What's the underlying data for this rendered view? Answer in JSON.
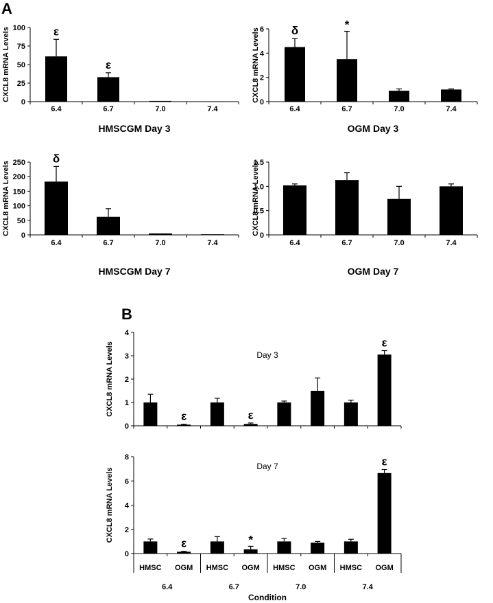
{
  "panel_labels": [
    "A",
    "B"
  ],
  "chart_data": [
    {
      "type": "bar",
      "panel": "A",
      "xlabel": "HMSCGM Day 3",
      "ylabel": "CXCL8 mRNA Levels",
      "categories": [
        "6.4",
        "6.7",
        "7.0",
        "7.4"
      ],
      "values": [
        61,
        33,
        1,
        0.5
      ],
      "errors": [
        23,
        6,
        0,
        0
      ],
      "annotations": [
        "ε",
        "ε",
        "",
        ""
      ],
      "ylim": [
        0,
        100
      ],
      "yticks": [
        "0",
        "25",
        "50",
        "75",
        "100"
      ]
    },
    {
      "type": "bar",
      "panel": "A",
      "xlabel": "OGM Day 3",
      "ylabel": "CXCL8 mRNA Levels",
      "categories": [
        "6.4",
        "6.7",
        "7.0",
        "7.4"
      ],
      "values": [
        4.5,
        3.5,
        0.9,
        1.0
      ],
      "errors": [
        0.7,
        2.3,
        0.15,
        0.05
      ],
      "annotations": [
        "δ",
        "*",
        "",
        ""
      ],
      "ylim": [
        0,
        6
      ],
      "yticks": [
        "0",
        "2",
        "4",
        "6"
      ]
    },
    {
      "type": "bar",
      "panel": "A",
      "xlabel": "HMSCGM Day 7",
      "ylabel": "CXCL8 mRNA Levels",
      "categories": [
        "6.4",
        "6.7",
        "7.0",
        "7.4"
      ],
      "values": [
        183,
        62,
        5,
        2
      ],
      "errors": [
        52,
        28,
        0,
        0
      ],
      "annotations": [
        "δ",
        "",
        "",
        ""
      ],
      "ylim": [
        0,
        250
      ],
      "yticks": [
        "0",
        "50",
        "100",
        "150",
        "200",
        "250"
      ]
    },
    {
      "type": "bar",
      "panel": "A",
      "xlabel": "OGM Day 7",
      "ylabel": "CXCL8 mRNA Levels",
      "categories": [
        "6.4",
        "6.7",
        "7.0",
        "7.4"
      ],
      "values": [
        1.02,
        1.13,
        0.74,
        1.0
      ],
      "errors": [
        0.03,
        0.15,
        0.26,
        0.05
      ],
      "annotations": [
        "",
        "",
        "",
        ""
      ],
      "ylim": [
        0,
        1.5
      ],
      "yticks": [
        "0",
        "0.5",
        "1.0",
        "1.5"
      ]
    },
    {
      "type": "bar",
      "panel": "B",
      "title": "Day 3",
      "ylabel": "CXCL8 mRNA Levels",
      "categories": [
        "HMSC",
        "OGM",
        "HMSC",
        "OGM",
        "HMSC",
        "OGM",
        "HMSC",
        "OGM"
      ],
      "values": [
        1.0,
        0.05,
        1.0,
        0.08,
        1.0,
        1.5,
        1.0,
        3.05
      ],
      "errors": [
        0.35,
        0.02,
        0.18,
        0.04,
        0.06,
        0.55,
        0.1,
        0.17
      ],
      "annotations": [
        "",
        "ε",
        "",
        "ε",
        "",
        "",
        "",
        "ε"
      ],
      "ylim": [
        0,
        4
      ],
      "yticks": [
        "0",
        "1",
        "2",
        "3",
        "4"
      ]
    },
    {
      "type": "bar",
      "panel": "B",
      "title": "Day 7",
      "ylabel": "CXCL8 mRNA Levels",
      "xlabel": "Condition",
      "categories": [
        "HMSC",
        "OGM",
        "HMSC",
        "OGM",
        "HMSC",
        "OGM",
        "HMSC",
        "OGM"
      ],
      "groups": [
        "6.4",
        "6.7",
        "7.0",
        "7.4"
      ],
      "values": [
        1.0,
        0.15,
        1.0,
        0.35,
        1.0,
        0.9,
        1.0,
        6.65
      ],
      "errors": [
        0.2,
        0.04,
        0.4,
        0.25,
        0.25,
        0.1,
        0.18,
        0.3
      ],
      "annotations": [
        "",
        "ε",
        "",
        "*",
        "",
        "",
        "",
        "ε"
      ],
      "ylim": [
        0,
        8
      ],
      "yticks": [
        "0",
        "2",
        "4",
        "6",
        "8"
      ]
    }
  ]
}
